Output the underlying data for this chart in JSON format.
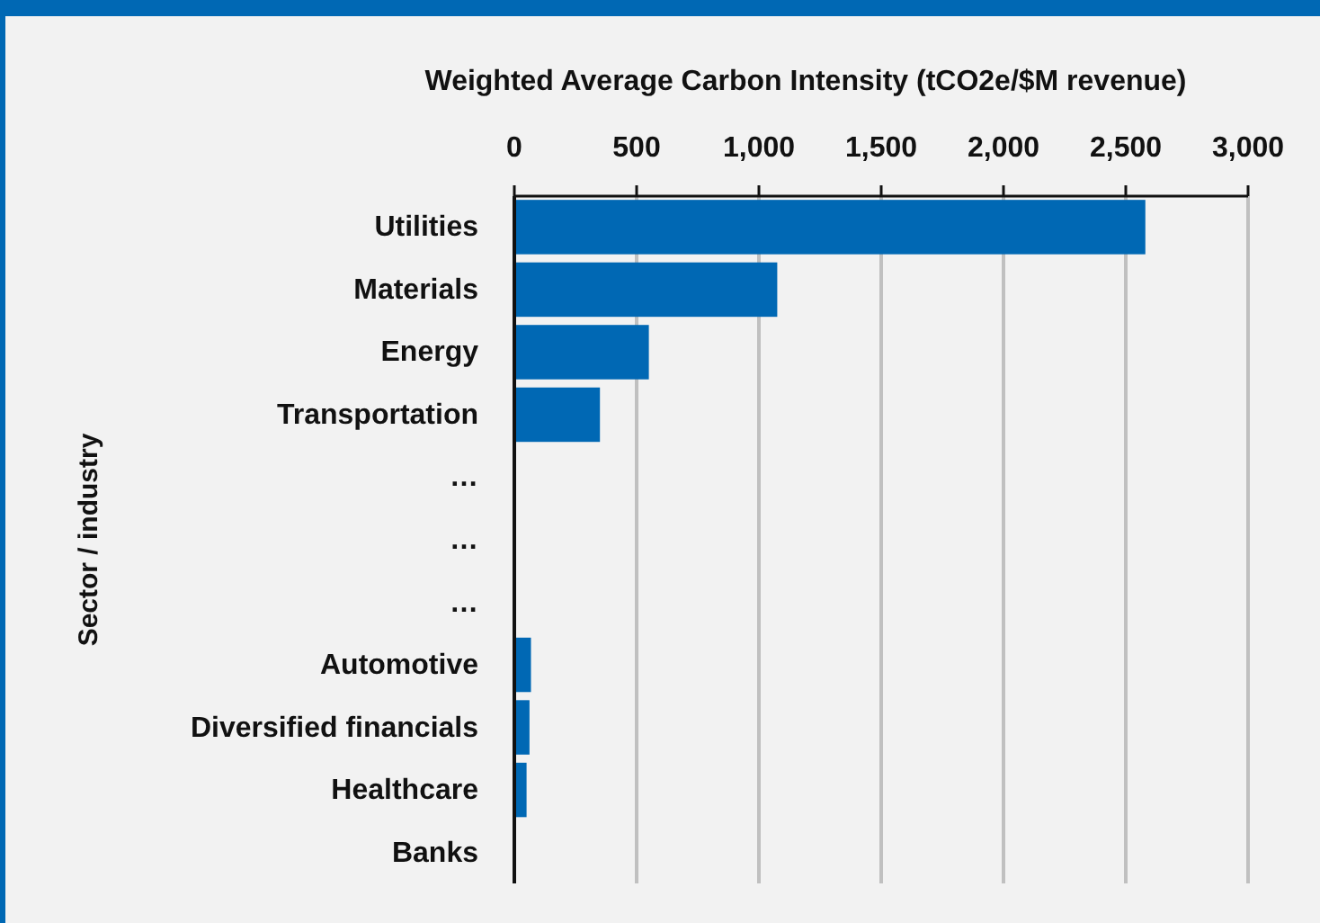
{
  "chart_data": {
    "type": "bar",
    "orientation": "horizontal",
    "xlabel": "Weighted Average Carbon Intensity (tCO2e/$M revenue)",
    "ylabel": "Sector / industry",
    "categories": [
      "Utilities",
      "Materials",
      "Energy",
      "Transportation",
      "…",
      "…",
      "…",
      "Automotive",
      "Diversified financials",
      "Healthcare",
      "Banks"
    ],
    "values": [
      2580,
      1075,
      550,
      350,
      null,
      null,
      null,
      68,
      62,
      50,
      0
    ],
    "color": "#0068b4",
    "xlim": [
      0,
      3000
    ],
    "xticks": [
      0,
      {
        "value": 500,
        "label": "500"
      },
      {
        "value": 1000,
        "label": "1,000"
      },
      {
        "value": 1500,
        "label": "1,500"
      },
      {
        "value": 2000,
        "label": "2,000"
      },
      {
        "value": 2500,
        "label": "2,500"
      },
      {
        "value": 3000,
        "label": "3,000"
      }
    ],
    "grid": "x"
  }
}
